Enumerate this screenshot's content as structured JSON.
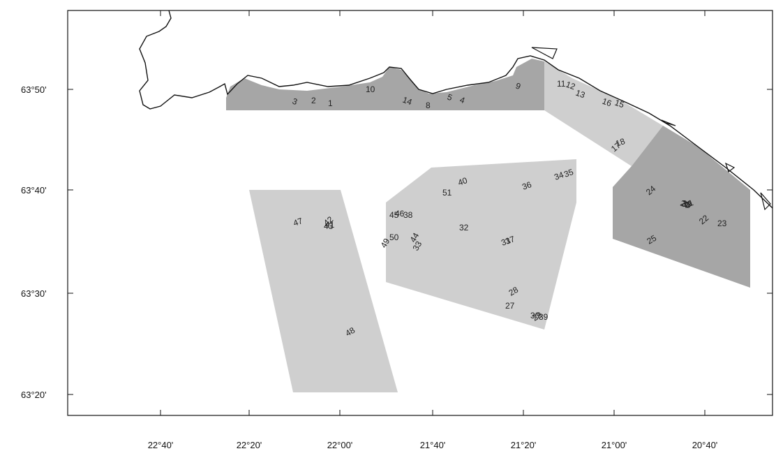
{
  "map": {
    "latitude_labels": [
      "63°50'",
      "63°40'",
      "63°30'",
      "63°20'"
    ],
    "longitude_labels": [
      "22°40'",
      "22°20'",
      "22°00'",
      "21°40'",
      "21°20'",
      "21°00'",
      "20°40'"
    ],
    "colors": {
      "area_dark": "#a6a6a6",
      "area_light": "#cfcfcf",
      "coast": "#111111",
      "frame": "#111111"
    },
    "site_labels": [
      "1",
      "2",
      "3",
      "4",
      "5",
      "8",
      "9",
      "10",
      "11",
      "12",
      "13",
      "14",
      "15",
      "16",
      "17",
      "18",
      "19",
      "20",
      "21",
      "22",
      "23",
      "24",
      "25",
      "26",
      "27",
      "28",
      "29",
      "30",
      "31",
      "32",
      "33",
      "34",
      "35",
      "36",
      "37",
      "38",
      "39",
      "40",
      "41",
      "42",
      "43",
      "44",
      "45",
      "46",
      "47",
      "48",
      "49",
      "50",
      "51"
    ]
  }
}
